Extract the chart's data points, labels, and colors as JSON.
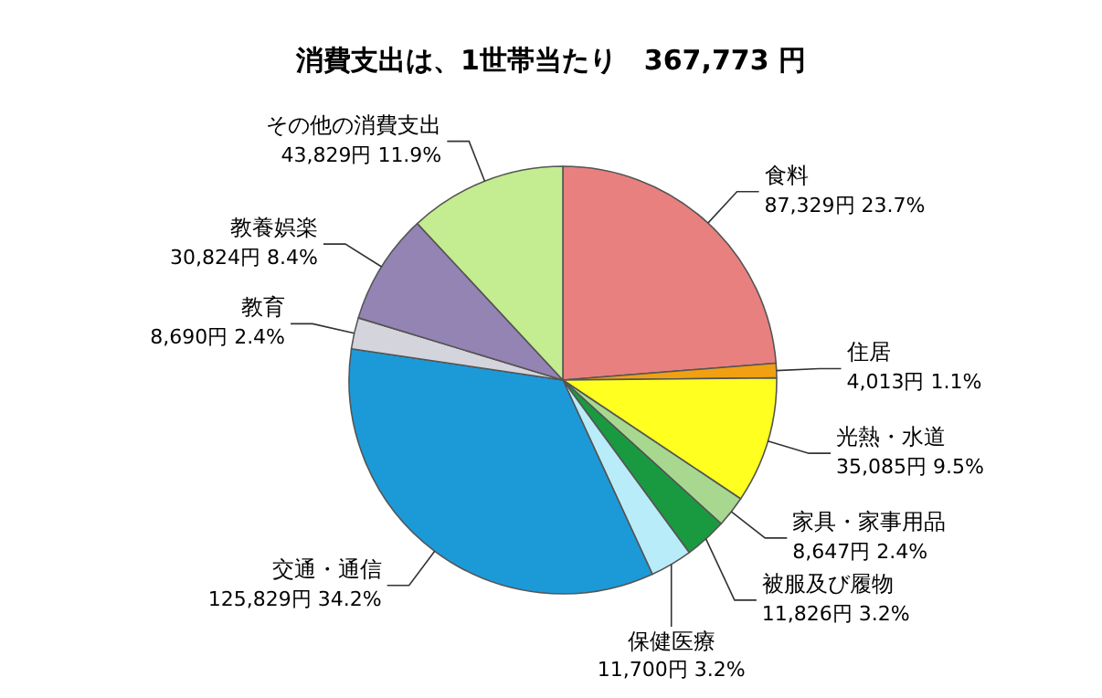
{
  "chart_data": {
    "type": "pie",
    "title": "消費支出は、1世帯当たり　367,773 円",
    "categories": [
      "食料",
      "住居",
      "光熱・水道",
      "家具・家事用品",
      "被服及び履物",
      "保健医療",
      "交通・通信",
      "教育",
      "教養娯楽",
      "その他の消費支出"
    ],
    "values": [
      87329,
      4013,
      35085,
      8647,
      11826,
      11700,
      125829,
      8690,
      30824,
      43829
    ],
    "value_labels": [
      "87,329円 23.7%",
      "4,013円 1.1%",
      "35,085円 9.5%",
      "8,647円 2.4%",
      "11,826円 3.2%",
      "11,700円 3.2%",
      "125,829円 34.2%",
      "8,690円 2.4%",
      "30,824円 8.4%",
      "43,829円 11.9%"
    ],
    "colors": [
      "#e88080",
      "#f0a010",
      "#ffff20",
      "#a8d890",
      "#1a9a40",
      "#b8ecf8",
      "#1c9ad8",
      "#d4d4dc",
      "#9484b4",
      "#c4ec90"
    ]
  }
}
